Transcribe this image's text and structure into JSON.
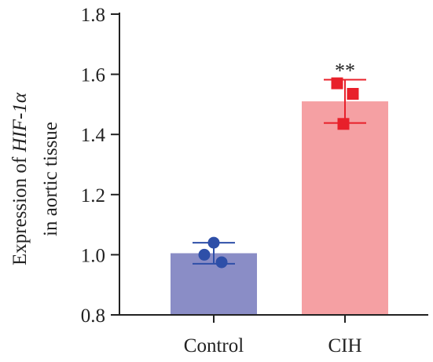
{
  "chart_data": {
    "type": "bar",
    "categories": [
      "Control",
      "CIH"
    ],
    "values": [
      1.005,
      1.51
    ],
    "errors": [
      0.035,
      0.072
    ],
    "points": [
      [
        1.04,
        1.0,
        0.975
      ],
      [
        1.57,
        1.535,
        1.435
      ]
    ],
    "bar_colors": [
      "#8A8DC6",
      "#F5A0A3"
    ],
    "point_colors": [
      "#2E4FA8",
      "#E8202A"
    ],
    "point_shapes": [
      "circle",
      "square"
    ],
    "errorbar_colors": [
      "#2E4FA8",
      "#E8202A"
    ],
    "annotations": [
      {
        "category": "CIH",
        "text": "**"
      }
    ],
    "ylim": [
      0.8,
      1.8
    ],
    "yticks": [
      0.8,
      1.0,
      1.2,
      1.4,
      1.6,
      1.8
    ],
    "ytick_labels": [
      "0.8",
      "1.0",
      "1.2",
      "1.4",
      "1.6",
      "1.8"
    ],
    "ylabel": {
      "line1_prefix": "Expression of ",
      "line1_gene": "HIF-1α",
      "line2": "in aortic tissue"
    },
    "xlabel": "",
    "title": "",
    "grid": false,
    "legend": "none"
  }
}
